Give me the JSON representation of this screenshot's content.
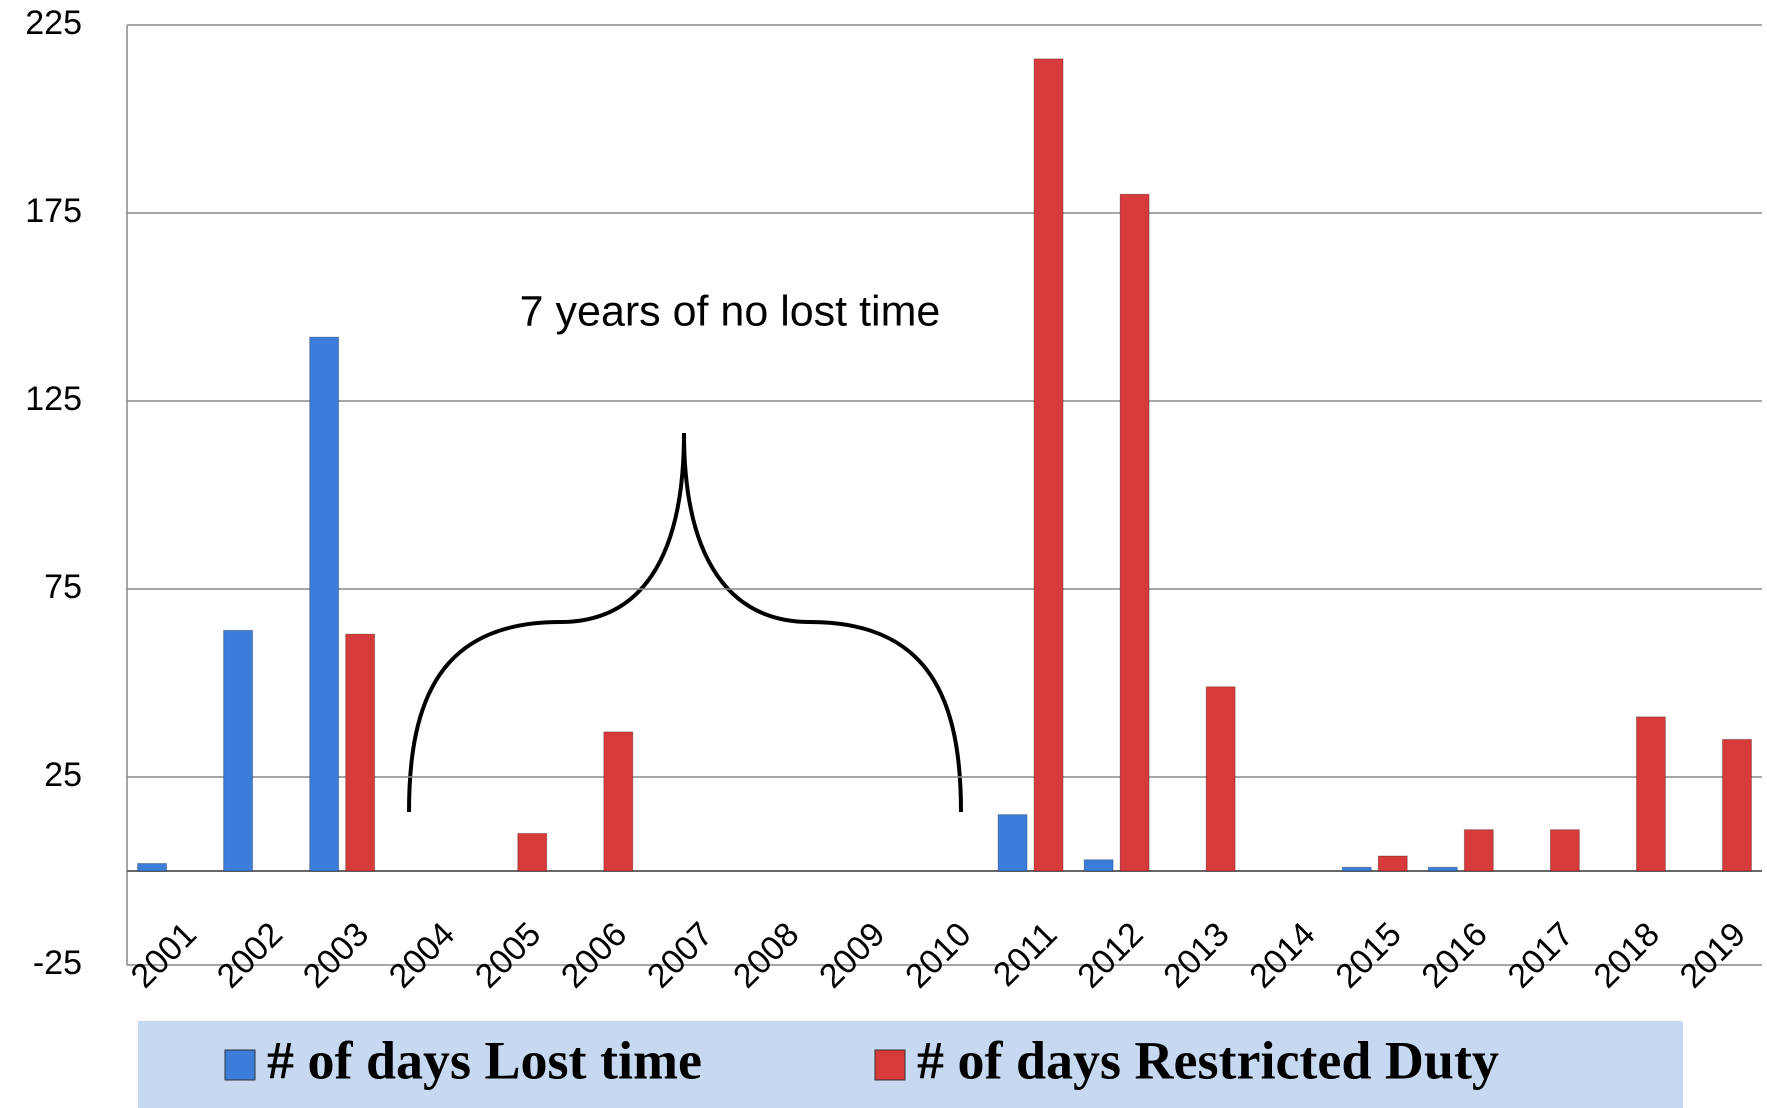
{
  "chart_data": {
    "type": "bar",
    "annotation": "7 years of no lost time",
    "categories": [
      "2001",
      "2002",
      "2003",
      "2004",
      "2005",
      "2006",
      "2007",
      "2008",
      "2009",
      "2010",
      "2011",
      "2012",
      "2013",
      "2014",
      "2015",
      "2016",
      "2017",
      "2018",
      "2019"
    ],
    "series": [
      {
        "name": "# of days Lost time",
        "color": "#3b7dd8",
        "values": [
          2,
          64,
          142,
          null,
          null,
          null,
          null,
          null,
          null,
          null,
          15,
          3,
          null,
          null,
          1,
          1,
          null,
          null,
          null
        ]
      },
      {
        "name": "# of days Restricted Duty",
        "color": "#d63a3a",
        "values": [
          null,
          null,
          63,
          null,
          10,
          37,
          null,
          null,
          null,
          null,
          216,
          180,
          49,
          null,
          4,
          11,
          11,
          41,
          35
        ]
      }
    ],
    "ylim": [
      -25,
      225
    ],
    "yticks": [
      -25,
      25,
      75,
      125,
      175,
      225
    ],
    "grid": true
  }
}
